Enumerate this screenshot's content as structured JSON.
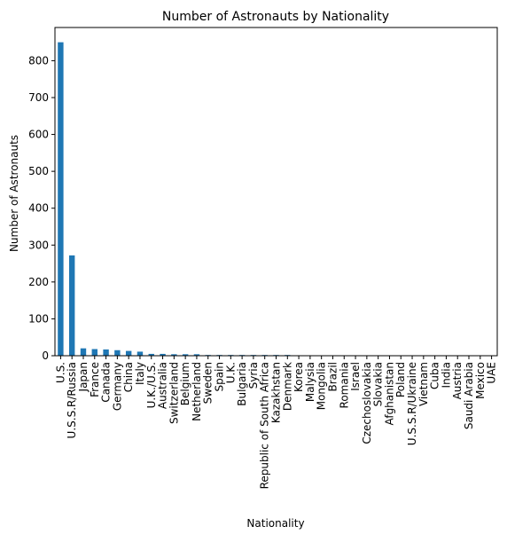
{
  "chart_data": {
    "type": "bar",
    "title": "Number of Astronauts by Nationality",
    "xlabel": "Nationality",
    "ylabel": "Number of Astronauts",
    "ylim": [
      0,
      890
    ],
    "yticks": [
      0,
      100,
      200,
      300,
      400,
      500,
      600,
      700,
      800
    ],
    "grid": false,
    "legend": "none",
    "bar_color": "#1f77b4",
    "categories": [
      "U.S.",
      "U.S.S.R/Russia",
      "Japan",
      "France",
      "Canada",
      "Germany",
      "China",
      "Italy",
      "U.K./U.S.",
      "Australia",
      "Switzerland",
      "Belgium",
      "Netherland",
      "Sweden",
      "Spain",
      "U.K.",
      "Bulgaria",
      "Syria",
      "Republic of South Africa",
      "Kazakhstan",
      "Denmark",
      "Korea",
      "Malysia",
      "Mongolia",
      "Brazil",
      "Romania",
      "Israel",
      "Czechoslovakia",
      "Slovakia",
      "Afghanistan",
      "Poland",
      "U.S.S.R/Ukraine",
      "Vietnam",
      "Cuba",
      "India",
      "Austria",
      "Saudi Arabia",
      "Mexico",
      "UAE"
    ],
    "values": [
      850,
      272,
      20,
      18,
      17,
      15,
      13,
      11,
      5,
      5,
      4,
      4,
      4,
      2,
      2,
      2,
      2,
      2,
      2,
      2,
      2,
      1,
      1,
      1,
      1,
      1,
      1,
      1,
      1,
      1,
      1,
      1,
      1,
      1,
      1,
      1,
      1,
      1,
      1
    ]
  }
}
